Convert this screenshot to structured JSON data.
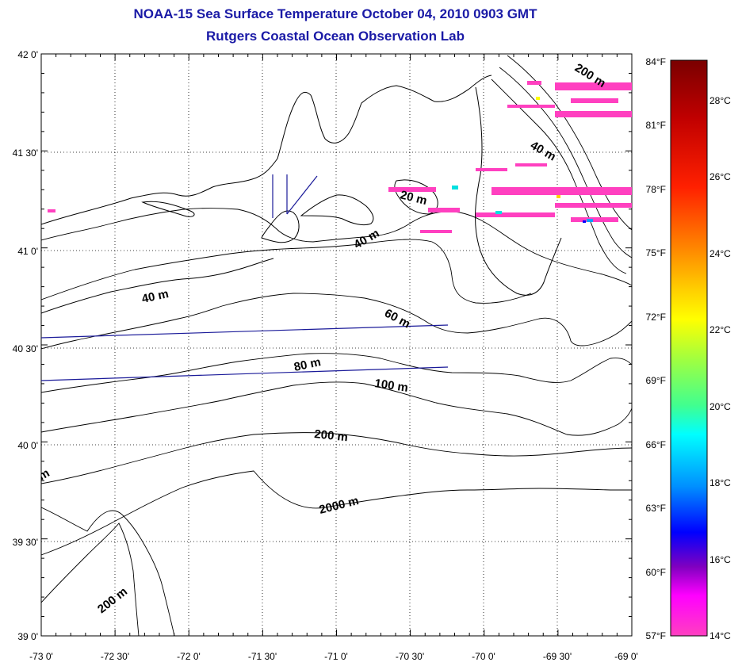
{
  "title": "NOAA-15 Sea Surface Temperature October 04, 2010 0903 GMT",
  "subtitle": "Rutgers Coastal Ocean Observation Lab",
  "map": {
    "lat_labels": [
      "42 0'",
      "41 30'",
      "41 0'",
      "40 30'",
      "40 0'",
      "39 30'",
      "39 0'"
    ],
    "lon_labels": [
      "-73 0'",
      "-72 30'",
      "-72 0'",
      "-71 30'",
      "-71 0'",
      "-70 30'",
      "-70 0'",
      "-69 30'",
      "-69 0'"
    ],
    "lat_range": [
      39.0,
      42.0
    ],
    "lon_range": [
      -73.0,
      -69.0
    ],
    "grid": "dotted",
    "contour_labels": [
      "200 m",
      "40 m",
      "20 m",
      "40 m",
      "40 m",
      "60 m",
      "80 m",
      "100 m",
      "200 m",
      "2000 m",
      "200 m",
      "m"
    ]
  },
  "colorbar": {
    "f_labels": [
      "84°F",
      "81°F",
      "78°F",
      "75°F",
      "72°F",
      "69°F",
      "66°F",
      "63°F",
      "60°F",
      "57°F"
    ],
    "c_labels": [
      "28°C",
      "26°C",
      "24°C",
      "22°C",
      "20°C",
      "18°C",
      "16°C",
      "14°C"
    ],
    "colors": [
      "#7a0000",
      "#ff0000",
      "#ff8000",
      "#ffff00",
      "#80ff40",
      "#00ffff",
      "#0080ff",
      "#0000ff",
      "#8000c0",
      "#ff00ff",
      "#ff40c0"
    ]
  }
}
